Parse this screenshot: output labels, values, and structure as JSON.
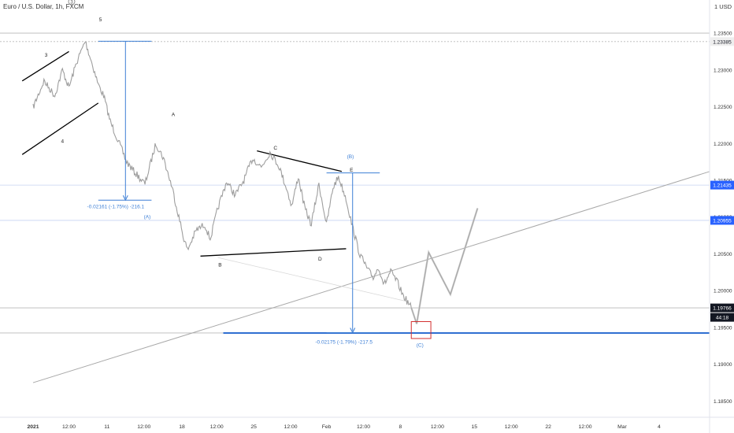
{
  "title": "Euro / U.S. Dollar, 1h, FXCM",
  "header_badge": "3",
  "currency": "1 USD",
  "colors": {
    "background": "#ffffff",
    "price": "#9e9e9e",
    "trendline": "#000000",
    "measure": "#3d7fd6",
    "target_line": "#2f6fd1",
    "target_box": "#d32f2f",
    "hline": "#b9b9b9",
    "hline_blue": "#c6d3f2",
    "badge_blue": "#2962ff",
    "axis_text": "#333333"
  },
  "chart_data": {
    "type": "line",
    "symbol": "EURUSD",
    "timeframe": "1h",
    "x_axis": {
      "tick_labels": [
        "2021",
        "12:00",
        "11",
        "12:00",
        "18",
        "12:00",
        "25",
        "12:00",
        "Feb",
        "12:00",
        "8",
        "12:00",
        "15",
        "12:00",
        "22",
        "12:00",
        "Mar",
        "4"
      ],
      "range_days": [
        0,
        61
      ]
    },
    "y_axis": {
      "tick_labels": [
        "1.23500",
        "1.23000",
        "1.22500",
        "1.22000",
        "1.21500",
        "1.21000",
        "1.20500",
        "1.20000",
        "1.19500",
        "1.19000",
        "1.18500"
      ],
      "ylim": [
        1.1828,
        1.2395
      ],
      "scale": "linear"
    },
    "price_labels": [
      {
        "name": "level_1",
        "text": "1.23385",
        "value": 1.23385,
        "style": "gray"
      },
      {
        "name": "level_2",
        "text": "1.21435",
        "value": 1.21435,
        "style": "blue"
      },
      {
        "name": "level_3",
        "text": "1.20955",
        "value": 1.20955,
        "style": "blue"
      },
      {
        "name": "last_price",
        "text": "1.19766",
        "value": 1.19766,
        "style": "dark"
      },
      {
        "name": "countdown",
        "text": "44:18",
        "style": "dark"
      }
    ],
    "series": [
      {
        "name": "EURUSD 1h close",
        "x": [
          0.0,
          1.0,
          2.0,
          2.7,
          3.3,
          4.0,
          4.8,
          5.5,
          6.0,
          6.5,
          7.1,
          7.8,
          8.6,
          9.4,
          10.3,
          11.3,
          12.0,
          12.8,
          13.8,
          14.2,
          15.0,
          15.8,
          16.3,
          17.0,
          17.8,
          18.6,
          19.4,
          20.2,
          21.0,
          21.8,
          22.6,
          23.3,
          23.8,
          24.4,
          25.0,
          25.6,
          26.3,
          27.0,
          27.6,
          28.1,
          28.8,
          29.3,
          30.0,
          30.4,
          30.8,
          31.3,
          31.8,
          32.3,
          32.9,
          33.5,
          34.0,
          34.4,
          34.8
        ],
        "y": [
          1.2249,
          1.2285,
          1.2265,
          1.23,
          1.2276,
          1.231,
          1.2339,
          1.2305,
          1.228,
          1.2265,
          1.223,
          1.2205,
          1.2175,
          1.216,
          1.2145,
          1.22,
          1.218,
          1.214,
          1.2075,
          1.2055,
          1.2082,
          1.209,
          1.207,
          1.2112,
          1.2148,
          1.213,
          1.215,
          1.218,
          1.2168,
          1.2188,
          1.217,
          1.214,
          1.2115,
          1.2155,
          1.2112,
          1.209,
          1.2145,
          1.209,
          1.214,
          1.2155,
          1.2125,
          1.2092,
          1.2052,
          1.204,
          1.2028,
          1.2018,
          1.2032,
          1.2008,
          1.2026,
          1.2012,
          1.1995,
          1.1986,
          1.1977
        ]
      },
      {
        "name": "projection",
        "x": [
          34.8,
          35.3,
          36.4,
          38.4,
          40.9
        ],
        "y": [
          1.1977,
          1.1955,
          1.2052,
          1.1995,
          1.2112
        ]
      }
    ],
    "trendlines": [
      {
        "name": "wave-3-line",
        "x": [
          -1.0,
          3.3
        ],
        "y": [
          1.2285,
          1.2325
        ]
      },
      {
        "name": "wave-4-line",
        "x": [
          -1.0,
          6.0
        ],
        "y": [
          1.2185,
          1.2255
        ]
      },
      {
        "name": "triangle-upper",
        "x": [
          20.6,
          28.4
        ],
        "y": [
          1.219,
          1.2162
        ]
      },
      {
        "name": "triangle-lower",
        "x": [
          15.4,
          28.8
        ],
        "y": [
          1.2047,
          1.2057
        ]
      },
      {
        "name": "long-gray-line",
        "x": [
          0.0,
          64.0
        ],
        "y": [
          1.1875,
          1.217
        ]
      },
      {
        "name": "faint-line",
        "x": [
          17.0,
          34.5
        ],
        "y": [
          1.2045,
          1.1985
        ]
      }
    ],
    "horizontal_lines": [
      {
        "name": "hline-1.23385",
        "value": 1.23385
      },
      {
        "name": "hline-1.23500",
        "value": 1.235
      },
      {
        "name": "hline-1.21435",
        "value": 1.21435
      },
      {
        "name": "hline-1.20955",
        "value": 1.20955
      },
      {
        "name": "hline-1.19766",
        "value": 1.19766
      }
    ],
    "target_line": {
      "value": 1.19425,
      "x": [
        17.5,
        64.5
      ]
    },
    "target_box": {
      "x": [
        34.8,
        36.6
      ],
      "y": [
        1.1935,
        1.1958
      ]
    },
    "wave_labels": [
      {
        "text": "5",
        "x": 6.2,
        "y": 1.2366,
        "color": "dark"
      },
      {
        "text": "3",
        "x": 1.2,
        "y": 1.2318,
        "color": "dark"
      },
      {
        "text": "4",
        "x": 2.7,
        "y": 1.2201,
        "color": "dark"
      },
      {
        "text": "A",
        "x": 12.9,
        "y": 1.2237,
        "color": "dark"
      },
      {
        "text": "B",
        "x": 17.2,
        "y": 1.2033,
        "color": "dark"
      },
      {
        "text": "C",
        "x": 22.3,
        "y": 1.2192,
        "color": "dark"
      },
      {
        "text": "D",
        "x": 26.4,
        "y": 1.2041,
        "color": "dark"
      },
      {
        "text": "E",
        "x": 29.3,
        "y": 1.2162,
        "color": "dark"
      },
      {
        "text": "(B)",
        "x": 29.2,
        "y": 1.218,
        "color": "blue"
      },
      {
        "text": "(A)",
        "x": 10.5,
        "y": 1.2098,
        "color": "blue"
      },
      {
        "text": "(C)",
        "x": 35.6,
        "y": 1.1924,
        "color": "blue"
      }
    ],
    "measurements": [
      {
        "name": "measure-1",
        "text": "-0.02161 (-1.75%) -216.1",
        "x_from": 6.0,
        "x_to": 10.9,
        "y_from": 1.2339,
        "y_to": 1.2123,
        "arrow_x": 8.5,
        "label_x": 7.6,
        "label_y": 1.2112
      },
      {
        "name": "measure-2",
        "text": "-0.02175 (-1.79%) -217.5",
        "x_from": 27.0,
        "x_to": 31.9,
        "y_from": 1.216,
        "y_to": 1.1943,
        "arrow_x": 29.4,
        "label_x": 28.6,
        "label_y": 1.1928
      }
    ]
  }
}
